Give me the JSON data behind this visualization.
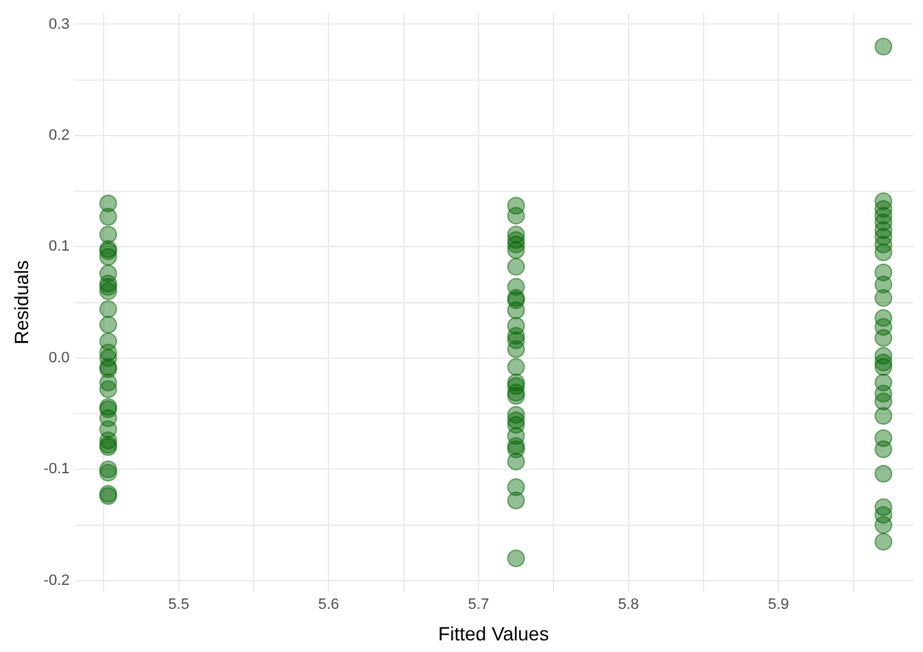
{
  "chart_data": {
    "type": "scatter",
    "xlabel": "Fitted Values",
    "ylabel": "Residuals",
    "xlim": [
      5.43,
      5.99
    ],
    "ylim": [
      -0.21,
      0.31
    ],
    "xticks": [
      {
        "value": 5.45,
        "label": null
      },
      5.5,
      {
        "value": 5.55,
        "label": null
      },
      5.6,
      {
        "value": 5.65,
        "label": null
      },
      5.7,
      {
        "value": 5.75,
        "label": null
      },
      5.8,
      {
        "value": 5.85,
        "label": null
      },
      5.9,
      {
        "value": 5.95,
        "label": null
      }
    ],
    "yticks": [
      -0.2,
      {
        "value": -0.15,
        "label": null
      },
      -0.1,
      {
        "value": -0.05,
        "label": null
      },
      {
        "value": 0,
        "label": "0.0"
      },
      {
        "value": 0.05,
        "label": null
      },
      0.1,
      {
        "value": 0.15,
        "label": null
      },
      0.2,
      {
        "value": 0.25,
        "label": null
      },
      0.3
    ],
    "grid": true,
    "marker": "circle",
    "legend": false,
    "series": [
      {
        "color": "#006400",
        "x": [
          5.453,
          5.453,
          5.453,
          5.453,
          5.453,
          5.453,
          5.453,
          5.453,
          5.453,
          5.453,
          5.453,
          5.453,
          5.453,
          5.453,
          5.453,
          5.453,
          5.453,
          5.453,
          5.453,
          5.453,
          5.453,
          5.453,
          5.453,
          5.453,
          5.453,
          5.453,
          5.453,
          5.453,
          5.453,
          5.453,
          5.725,
          5.725,
          5.725,
          5.725,
          5.725,
          5.725,
          5.725,
          5.725,
          5.725,
          5.725,
          5.725,
          5.725,
          5.725,
          5.725,
          5.725,
          5.725,
          5.725,
          5.725,
          5.725,
          5.725,
          5.725,
          5.725,
          5.725,
          5.725,
          5.725,
          5.725,
          5.725,
          5.725,
          5.725,
          5.725,
          5.97,
          5.97,
          5.97,
          5.97,
          5.97,
          5.97,
          5.97,
          5.97,
          5.97,
          5.97,
          5.97,
          5.97,
          5.97,
          5.97,
          5.97,
          5.97,
          5.97,
          5.97,
          5.97,
          5.97,
          5.97,
          5.97,
          5.97,
          5.97,
          5.97,
          5.97,
          5.97,
          5.97,
          5.97
        ],
        "values": [
          0.139,
          0.127,
          0.111,
          0.098,
          0.096,
          0.091,
          0.076,
          0.067,
          0.064,
          0.06,
          0.044,
          0.03,
          0.015,
          0.005,
          0.0,
          -0.008,
          -0.01,
          -0.022,
          -0.028,
          -0.044,
          -0.046,
          -0.054,
          -0.064,
          -0.074,
          -0.078,
          -0.08,
          -0.1,
          -0.103,
          -0.122,
          -0.124,
          0.137,
          0.128,
          0.111,
          0.106,
          0.102,
          0.097,
          0.082,
          0.064,
          0.054,
          0.052,
          0.043,
          0.029,
          0.02,
          0.016,
          0.008,
          -0.008,
          -0.022,
          -0.025,
          -0.031,
          -0.034,
          -0.051,
          -0.056,
          -0.06,
          -0.07,
          -0.079,
          -0.082,
          -0.093,
          -0.116,
          -0.128,
          -0.18,
          0.28,
          0.141,
          0.134,
          0.128,
          0.122,
          0.115,
          0.109,
          0.102,
          0.095,
          0.077,
          0.066,
          0.054,
          0.036,
          0.028,
          0.018,
          0.002,
          -0.004,
          -0.008,
          -0.022,
          -0.032,
          -0.039,
          -0.052,
          -0.072,
          -0.082,
          -0.104,
          -0.134,
          -0.141,
          -0.15,
          -0.165
        ]
      }
    ]
  }
}
